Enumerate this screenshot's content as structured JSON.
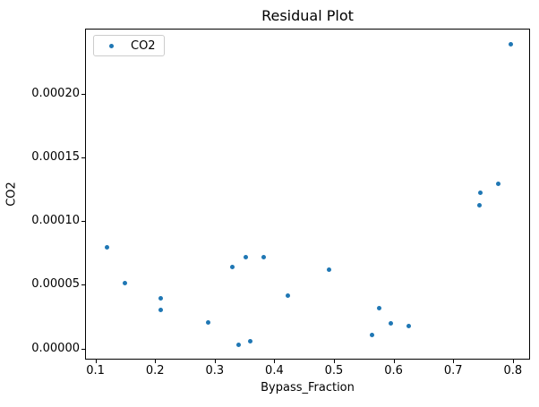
{
  "chart_data": {
    "type": "scatter",
    "title": "Residual Plot",
    "xlabel": "Bypass_Fraction",
    "ylabel": "CO2",
    "grid": false,
    "legend_position": "upper left",
    "legend_label": "CO2",
    "marker_color": "#1f77b4",
    "axis_color": "#000000",
    "xlim": [
      0.0826,
      0.8288
    ],
    "ylim": [
      -8.8e-06,
      0.0002512
    ],
    "xticks": [
      0.1,
      0.2,
      0.3,
      0.4,
      0.5,
      0.6,
      0.7,
      0.8
    ],
    "xtick_labels": [
      "0.1",
      "0.2",
      "0.3",
      "0.4",
      "0.5",
      "0.6",
      "0.7",
      "0.8"
    ],
    "yticks": [
      0.0,
      5e-05,
      0.0001,
      0.00015,
      0.0002
    ],
    "ytick_labels": [
      "0.00000",
      "0.00005",
      "0.00010",
      "0.00015",
      "0.00020"
    ],
    "series": [
      {
        "name": "CO2",
        "points": [
          {
            "x": 0.119,
            "y": 7.95e-05
          },
          {
            "x": 0.149,
            "y": 5.15e-05
          },
          {
            "x": 0.209,
            "y": 3.95e-05
          },
          {
            "x": 0.209,
            "y": 3e-05
          },
          {
            "x": 0.289,
            "y": 2.03e-05
          },
          {
            "x": 0.33,
            "y": 6.37e-05
          },
          {
            "x": 0.34,
            "y": 3e-06
          },
          {
            "x": 0.352,
            "y": 7.14e-05
          },
          {
            "x": 0.36,
            "y": 5.4e-06
          },
          {
            "x": 0.382,
            "y": 7.14e-05
          },
          {
            "x": 0.423,
            "y": 4.16e-05
          },
          {
            "x": 0.492,
            "y": 6.22e-05
          },
          {
            "x": 0.563,
            "y": 1.05e-05
          },
          {
            "x": 0.575,
            "y": 3.16e-05
          },
          {
            "x": 0.595,
            "y": 1.96e-05
          },
          {
            "x": 0.625,
            "y": 1.75e-05
          },
          {
            "x": 0.744,
            "y": 0.0001123
          },
          {
            "x": 0.745,
            "y": 0.0001223
          },
          {
            "x": 0.776,
            "y": 0.0001291
          },
          {
            "x": 0.797,
            "y": 0.0002388
          }
        ]
      }
    ]
  }
}
